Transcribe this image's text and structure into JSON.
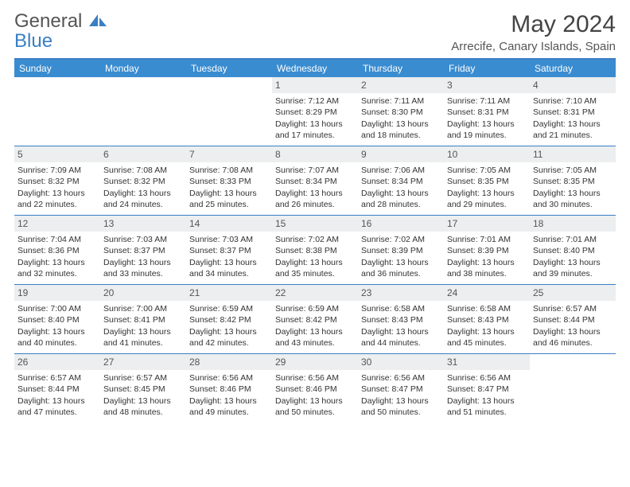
{
  "brand": {
    "part1": "General",
    "part2": "Blue"
  },
  "title": "May 2024",
  "location": "Arrecife, Canary Islands, Spain",
  "colors": {
    "header_bg": "#3a8cd0",
    "border": "#3a7fc4",
    "daynum_bg": "#eceeef",
    "text": "#333333"
  },
  "weekdays": [
    "Sunday",
    "Monday",
    "Tuesday",
    "Wednesday",
    "Thursday",
    "Friday",
    "Saturday"
  ],
  "weeks": [
    [
      {
        "n": "",
        "sr": "",
        "ss": "",
        "dl": ""
      },
      {
        "n": "",
        "sr": "",
        "ss": "",
        "dl": ""
      },
      {
        "n": "",
        "sr": "",
        "ss": "",
        "dl": ""
      },
      {
        "n": "1",
        "sr": "Sunrise: 7:12 AM",
        "ss": "Sunset: 8:29 PM",
        "dl": "Daylight: 13 hours and 17 minutes."
      },
      {
        "n": "2",
        "sr": "Sunrise: 7:11 AM",
        "ss": "Sunset: 8:30 PM",
        "dl": "Daylight: 13 hours and 18 minutes."
      },
      {
        "n": "3",
        "sr": "Sunrise: 7:11 AM",
        "ss": "Sunset: 8:31 PM",
        "dl": "Daylight: 13 hours and 19 minutes."
      },
      {
        "n": "4",
        "sr": "Sunrise: 7:10 AM",
        "ss": "Sunset: 8:31 PM",
        "dl": "Daylight: 13 hours and 21 minutes."
      }
    ],
    [
      {
        "n": "5",
        "sr": "Sunrise: 7:09 AM",
        "ss": "Sunset: 8:32 PM",
        "dl": "Daylight: 13 hours and 22 minutes."
      },
      {
        "n": "6",
        "sr": "Sunrise: 7:08 AM",
        "ss": "Sunset: 8:32 PM",
        "dl": "Daylight: 13 hours and 24 minutes."
      },
      {
        "n": "7",
        "sr": "Sunrise: 7:08 AM",
        "ss": "Sunset: 8:33 PM",
        "dl": "Daylight: 13 hours and 25 minutes."
      },
      {
        "n": "8",
        "sr": "Sunrise: 7:07 AM",
        "ss": "Sunset: 8:34 PM",
        "dl": "Daylight: 13 hours and 26 minutes."
      },
      {
        "n": "9",
        "sr": "Sunrise: 7:06 AM",
        "ss": "Sunset: 8:34 PM",
        "dl": "Daylight: 13 hours and 28 minutes."
      },
      {
        "n": "10",
        "sr": "Sunrise: 7:05 AM",
        "ss": "Sunset: 8:35 PM",
        "dl": "Daylight: 13 hours and 29 minutes."
      },
      {
        "n": "11",
        "sr": "Sunrise: 7:05 AM",
        "ss": "Sunset: 8:35 PM",
        "dl": "Daylight: 13 hours and 30 minutes."
      }
    ],
    [
      {
        "n": "12",
        "sr": "Sunrise: 7:04 AM",
        "ss": "Sunset: 8:36 PM",
        "dl": "Daylight: 13 hours and 32 minutes."
      },
      {
        "n": "13",
        "sr": "Sunrise: 7:03 AM",
        "ss": "Sunset: 8:37 PM",
        "dl": "Daylight: 13 hours and 33 minutes."
      },
      {
        "n": "14",
        "sr": "Sunrise: 7:03 AM",
        "ss": "Sunset: 8:37 PM",
        "dl": "Daylight: 13 hours and 34 minutes."
      },
      {
        "n": "15",
        "sr": "Sunrise: 7:02 AM",
        "ss": "Sunset: 8:38 PM",
        "dl": "Daylight: 13 hours and 35 minutes."
      },
      {
        "n": "16",
        "sr": "Sunrise: 7:02 AM",
        "ss": "Sunset: 8:39 PM",
        "dl": "Daylight: 13 hours and 36 minutes."
      },
      {
        "n": "17",
        "sr": "Sunrise: 7:01 AM",
        "ss": "Sunset: 8:39 PM",
        "dl": "Daylight: 13 hours and 38 minutes."
      },
      {
        "n": "18",
        "sr": "Sunrise: 7:01 AM",
        "ss": "Sunset: 8:40 PM",
        "dl": "Daylight: 13 hours and 39 minutes."
      }
    ],
    [
      {
        "n": "19",
        "sr": "Sunrise: 7:00 AM",
        "ss": "Sunset: 8:40 PM",
        "dl": "Daylight: 13 hours and 40 minutes."
      },
      {
        "n": "20",
        "sr": "Sunrise: 7:00 AM",
        "ss": "Sunset: 8:41 PM",
        "dl": "Daylight: 13 hours and 41 minutes."
      },
      {
        "n": "21",
        "sr": "Sunrise: 6:59 AM",
        "ss": "Sunset: 8:42 PM",
        "dl": "Daylight: 13 hours and 42 minutes."
      },
      {
        "n": "22",
        "sr": "Sunrise: 6:59 AM",
        "ss": "Sunset: 8:42 PM",
        "dl": "Daylight: 13 hours and 43 minutes."
      },
      {
        "n": "23",
        "sr": "Sunrise: 6:58 AM",
        "ss": "Sunset: 8:43 PM",
        "dl": "Daylight: 13 hours and 44 minutes."
      },
      {
        "n": "24",
        "sr": "Sunrise: 6:58 AM",
        "ss": "Sunset: 8:43 PM",
        "dl": "Daylight: 13 hours and 45 minutes."
      },
      {
        "n": "25",
        "sr": "Sunrise: 6:57 AM",
        "ss": "Sunset: 8:44 PM",
        "dl": "Daylight: 13 hours and 46 minutes."
      }
    ],
    [
      {
        "n": "26",
        "sr": "Sunrise: 6:57 AM",
        "ss": "Sunset: 8:44 PM",
        "dl": "Daylight: 13 hours and 47 minutes."
      },
      {
        "n": "27",
        "sr": "Sunrise: 6:57 AM",
        "ss": "Sunset: 8:45 PM",
        "dl": "Daylight: 13 hours and 48 minutes."
      },
      {
        "n": "28",
        "sr": "Sunrise: 6:56 AM",
        "ss": "Sunset: 8:46 PM",
        "dl": "Daylight: 13 hours and 49 minutes."
      },
      {
        "n": "29",
        "sr": "Sunrise: 6:56 AM",
        "ss": "Sunset: 8:46 PM",
        "dl": "Daylight: 13 hours and 50 minutes."
      },
      {
        "n": "30",
        "sr": "Sunrise: 6:56 AM",
        "ss": "Sunset: 8:47 PM",
        "dl": "Daylight: 13 hours and 50 minutes."
      },
      {
        "n": "31",
        "sr": "Sunrise: 6:56 AM",
        "ss": "Sunset: 8:47 PM",
        "dl": "Daylight: 13 hours and 51 minutes."
      },
      {
        "n": "",
        "sr": "",
        "ss": "",
        "dl": ""
      }
    ]
  ]
}
